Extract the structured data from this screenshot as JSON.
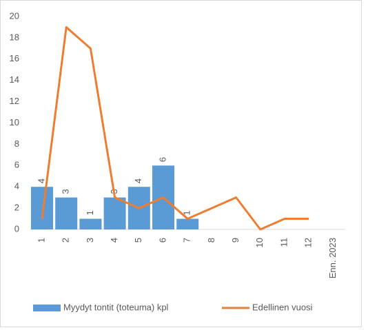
{
  "chart_data": {
    "type": "combo",
    "categories": [
      "1",
      "2",
      "3",
      "4",
      "5",
      "6",
      "7",
      "8",
      "9",
      "10",
      "11",
      "12",
      "Enn. 2023"
    ],
    "series": [
      {
        "name": "Myydyt tontit (toteuma) kpl",
        "type": "bar",
        "color": "#5b9bd5",
        "values": [
          4,
          3,
          1,
          3,
          4,
          6,
          1,
          null,
          null,
          null,
          null,
          null,
          null
        ]
      },
      {
        "name": "Edellinen vuosi",
        "type": "line",
        "color": "#ed7d31",
        "values": [
          1,
          19,
          17,
          3,
          2,
          3,
          1,
          2,
          3,
          0,
          1,
          1,
          null
        ]
      }
    ],
    "ylim": [
      0,
      20
    ],
    "yticks": [
      0,
      2,
      4,
      6,
      8,
      10,
      12,
      14,
      16,
      18,
      20
    ],
    "grid": false,
    "data_labels": true,
    "legend": "bottom"
  }
}
